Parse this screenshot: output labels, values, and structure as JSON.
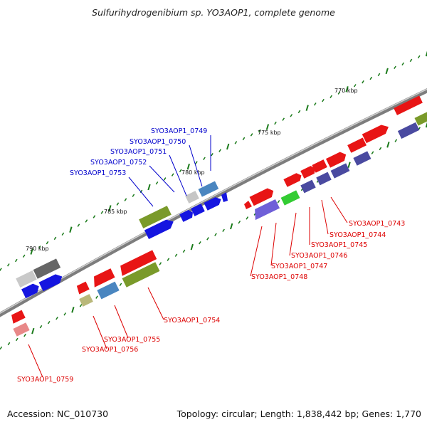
{
  "title": "Sulfurihydrogenibium sp. YO3AOP1, complete genome",
  "footer": {
    "accession": "Accession: NC_010730",
    "topology": "Topology: circular; Length: 1,838,442 bp; Genes: 1,770"
  },
  "scale_ticks": [
    "770 kbp",
    "775 kbp",
    "780 kbp",
    "785 kbp",
    "790 kbp"
  ],
  "gene_labels": {
    "forward": [
      "SYO3AOP1_0749",
      "SYO3AOP1_0750",
      "SYO3AOP1_0751",
      "SYO3AOP1_0752",
      "SYO3AOP1_0753"
    ],
    "reverse": [
      "SYO3AOP1_0743",
      "SYO3AOP1_0744",
      "SYO3AOP1_0745",
      "SYO3AOP1_0746",
      "SYO3AOP1_0747",
      "SYO3AOP1_0748",
      "SYO3AOP1_0754",
      "SYO3AOP1_0755",
      "SYO3AOP1_0756",
      "SYO3AOP1_0759"
    ]
  },
  "colors": {
    "forward_label": "#0000cc",
    "reverse_label": "#dd0000",
    "genome_line": "#8a8a8a",
    "tick_green": "#1a7a1a"
  }
}
